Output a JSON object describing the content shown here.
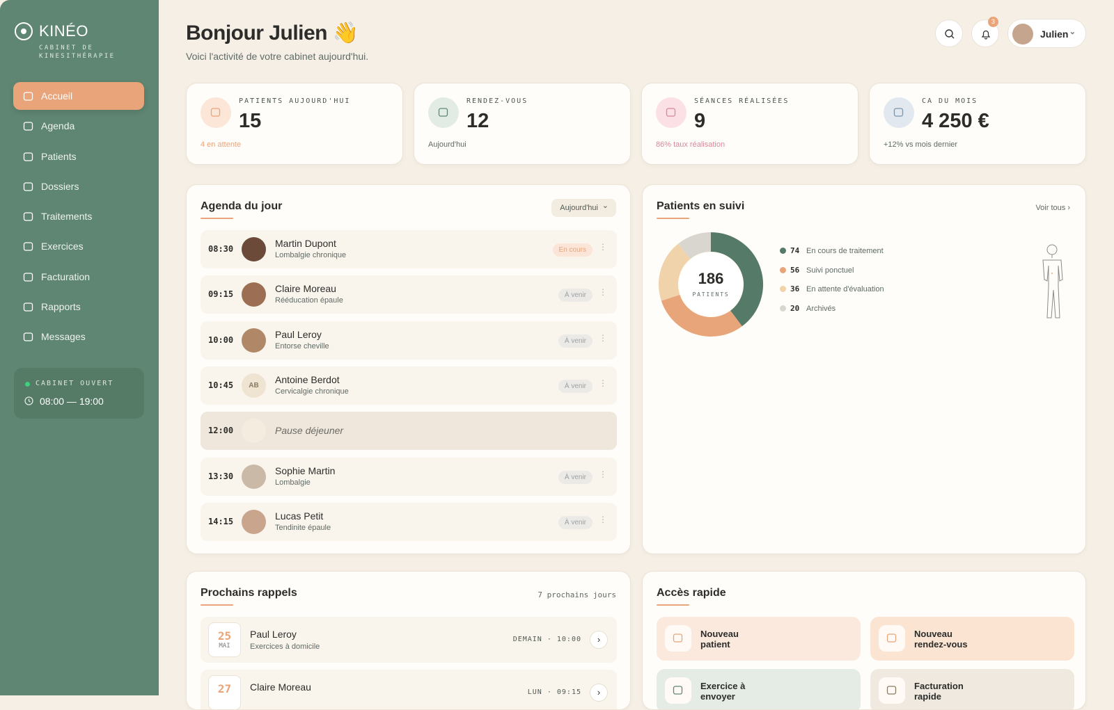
{
  "sidebar": {
    "brand": "KINÉO",
    "tagline": "CABINET DE KINESITHÉRAPIE",
    "nav": [
      "Accueil",
      "Agenda",
      "Patients",
      "Dossiers",
      "Traitements",
      "Exercices",
      "Facturation",
      "Rapports",
      "Messages"
    ],
    "status": {
      "label": "CABINET OUVERT",
      "hours": "08:00 — 19:00"
    }
  },
  "header": {
    "greeting": "Bonjour Julien 👋",
    "subtitle": "Voici l'activité de votre cabinet aujourd'hui.",
    "notifications": 3,
    "user": "Julien"
  },
  "stats": [
    {
      "label": "PATIENTS AUJOURD'HUI",
      "value": "15",
      "note": "4 en attente"
    },
    {
      "label": "RENDEZ-VOUS",
      "value": "12",
      "note": "Aujourd'hui"
    },
    {
      "label": "SÉANCES RÉALISÉES",
      "value": "9",
      "note": "86% taux réalisation"
    },
    {
      "label": "CA DU MOIS",
      "value": "4 250 €",
      "note": "+12% vs mois dernier"
    }
  ],
  "agenda": {
    "title": "Agenda du jour",
    "filter": "Aujourd'hui",
    "items": [
      {
        "time": "08:30",
        "name": "Martin Dupont",
        "detail": "Lombalgie chronique",
        "status": "En cours"
      },
      {
        "time": "09:15",
        "name": "Claire Moreau",
        "detail": "Rééducation épaule",
        "status": "À venir"
      },
      {
        "time": "10:00",
        "name": "Paul Leroy",
        "detail": "Entorse cheville",
        "status": "À venir"
      },
      {
        "time": "10:45",
        "initials": "AB",
        "name": "Antoine Berdot",
        "detail": "Cervicalgie chronique",
        "status": "À venir"
      },
      {
        "time": "12:00",
        "name": "Pause déjeuner"
      },
      {
        "time": "13:30",
        "name": "Sophie Martin",
        "detail": "Lombalgie",
        "status": "À venir"
      },
      {
        "time": "14:15",
        "name": "Lucas Petit",
        "detail": "Tendinite épaule",
        "status": "À venir"
      }
    ]
  },
  "patients": {
    "title": "Patients en suivi",
    "link": "Voir tous",
    "total": 186,
    "total_label": "PATIENTS",
    "segments": [
      {
        "value": 74,
        "label": "En cours de traitement",
        "color": "#567a68"
      },
      {
        "value": 56,
        "label": "Suivi ponctuel",
        "color": "#e8a57a"
      },
      {
        "value": 36,
        "label": "En attente d'évaluation",
        "color": "#f0d3aa"
      },
      {
        "value": 20,
        "label": "Archivés",
        "color": "#d9d6d0"
      }
    ]
  },
  "reminders": {
    "title": "Prochains rappels",
    "range": "7 prochains jours",
    "items": [
      {
        "day": "25",
        "month": "MAI",
        "name": "Paul Leroy",
        "detail": "Exercices à domicile",
        "when": "DEMAIN · 10:00"
      },
      {
        "day": "27",
        "name": "Claire Moreau",
        "when": "LUN · 09:15"
      }
    ]
  },
  "quick": {
    "title": "Accès rapide",
    "items": [
      "Nouveau patient",
      "Nouveau rendez-vous",
      "Exercice à envoyer",
      "Facturation rapide"
    ]
  }
}
